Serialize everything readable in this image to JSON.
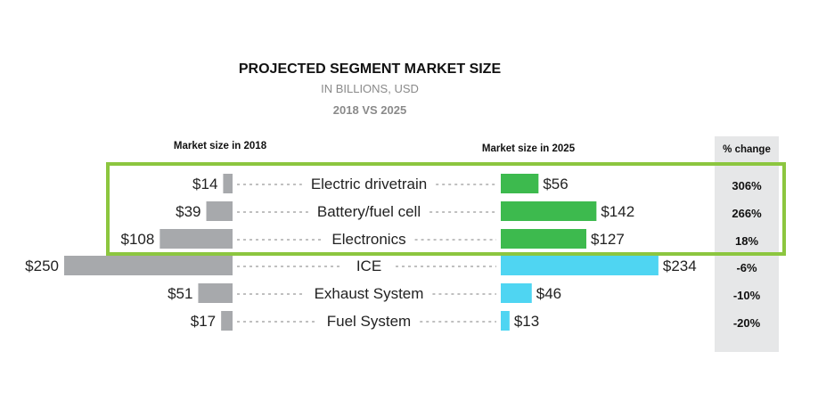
{
  "chart_data": {
    "type": "bar",
    "title": "PROJECTED SEGMENT MARKET SIZE",
    "subtitle": "IN BILLIONS, USD",
    "comparison": "2018 VS 2025",
    "left_header": "Market size in 2018",
    "right_header": "Market size in 2025",
    "change_header": "% change",
    "currency_prefix": "$",
    "categories": [
      "Electric drivetrain",
      "Battery/fuel cell",
      "Electronics",
      "ICE",
      "Exhaust System",
      "Fuel System"
    ],
    "series": [
      {
        "name": "Market size in 2018",
        "values": [
          14,
          39,
          108,
          250,
          51,
          17
        ]
      },
      {
        "name": "Market size in 2025",
        "values": [
          56,
          142,
          127,
          234,
          46,
          13
        ]
      }
    ],
    "pct_change": [
      "306%",
      "266%",
      "18%",
      "-6%",
      "-10%",
      "-20%"
    ],
    "highlighted_categories": [
      "Electric drivetrain",
      "Battery/fuel cell",
      "Electronics"
    ],
    "colors": {
      "bar_2018": "#a7a9ac",
      "bar_2025_highlight": "#3dba4e",
      "bar_2025_other": "#4fd5f2",
      "highlight_border": "#8cc63f",
      "change_column_bg": "#e6e7e8"
    }
  }
}
